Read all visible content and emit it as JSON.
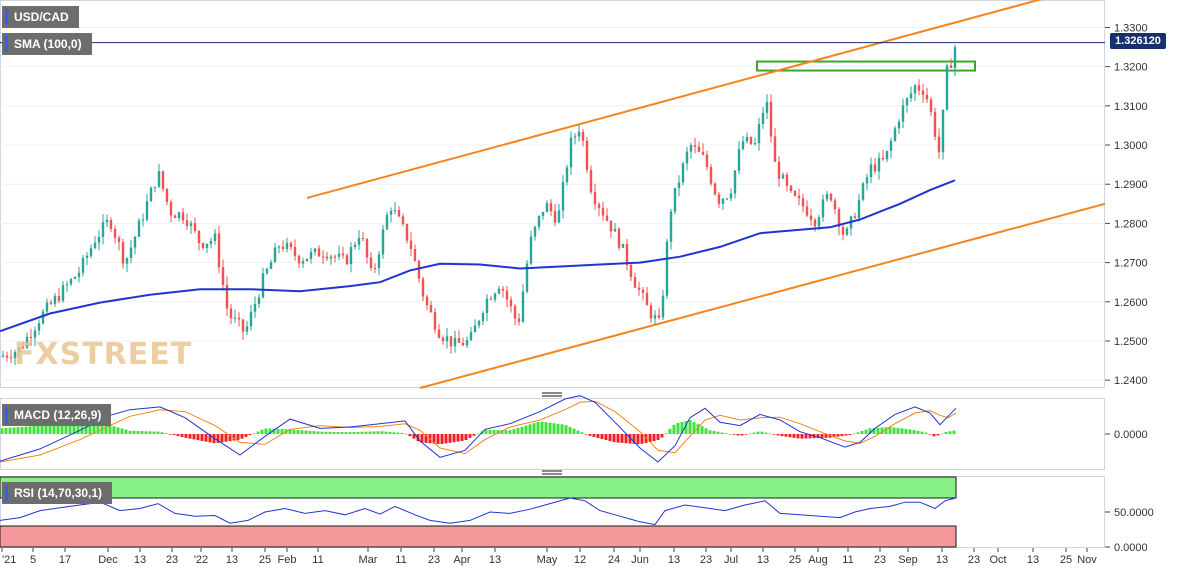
{
  "pair_label": "USD/CAD",
  "sma_label": "SMA (100,0)",
  "macd_label": "MACD (12,26,9)",
  "rsi_label": "RSI (14,70,30,1)",
  "last_price_label": "1.326120",
  "watermark": "FXSTREET",
  "colors": {
    "bull": "#26a69a",
    "bear": "#ef5350",
    "sma": "#1f35d1",
    "trend": "#f5841f",
    "zone": "#38a825",
    "macd_line": "#1f35d1",
    "signal_line": "#f5841f",
    "hist_pos": "#3de23d",
    "hist_neg": "#f02020",
    "rsi_line": "#1f35d1",
    "overbought": "#86f184",
    "oversold": "#f4989b"
  },
  "chart_data": [
    {
      "type": "candlestick",
      "title": "USD/CAD",
      "ylim": [
        1.238,
        1.337
      ],
      "y_ticks": [
        "1.3300",
        "1.3200",
        "1.3100",
        "1.3000",
        "1.2900",
        "1.2800",
        "1.2700",
        "1.2600",
        "1.2500",
        "1.2400"
      ],
      "x_ticks": [
        "'21",
        "5",
        "17",
        "Dec",
        "13",
        "23",
        "'22",
        "13",
        "25",
        "Feb",
        "11",
        "Mar",
        "11",
        "23",
        "Apr",
        "13",
        "May",
        "12",
        "24",
        "Jun",
        "13",
        "23",
        "Jul",
        "13",
        "25",
        "Aug",
        "11",
        "23",
        "Sep",
        "13",
        "23",
        "Oct",
        "13",
        "25",
        "Nov"
      ],
      "last_value": 1.32612,
      "close_path": [
        [
          0,
          1.246
        ],
        [
          20,
          1.248
        ],
        [
          40,
          1.256
        ],
        [
          60,
          1.262
        ],
        [
          80,
          1.268
        ],
        [
          95,
          1.276
        ],
        [
          110,
          1.281
        ],
        [
          125,
          1.27
        ],
        [
          140,
          1.28
        ],
        [
          158,
          1.293
        ],
        [
          170,
          1.283
        ],
        [
          185,
          1.282
        ],
        [
          200,
          1.275
        ],
        [
          215,
          1.276
        ],
        [
          228,
          1.257
        ],
        [
          245,
          1.252
        ],
        [
          262,
          1.265
        ],
        [
          280,
          1.275
        ],
        [
          300,
          1.271
        ],
        [
          325,
          1.273
        ],
        [
          345,
          1.27
        ],
        [
          360,
          1.278
        ],
        [
          372,
          1.266
        ],
        [
          390,
          1.285
        ],
        [
          410,
          1.275
        ],
        [
          425,
          1.26
        ],
        [
          440,
          1.252
        ],
        [
          455,
          1.249
        ],
        [
          470,
          1.25
        ],
        [
          485,
          1.26
        ],
        [
          500,
          1.265
        ],
        [
          518,
          1.254
        ],
        [
          530,
          1.275
        ],
        [
          545,
          1.285
        ],
        [
          558,
          1.281
        ],
        [
          570,
          1.3
        ],
        [
          580,
          1.305
        ],
        [
          592,
          1.288
        ],
        [
          605,
          1.282
        ],
        [
          620,
          1.275
        ],
        [
          635,
          1.265
        ],
        [
          648,
          1.258
        ],
        [
          660,
          1.254
        ],
        [
          670,
          1.283
        ],
        [
          680,
          1.292
        ],
        [
          690,
          1.3
        ],
        [
          705,
          1.296
        ],
        [
          718,
          1.286
        ],
        [
          730,
          1.288
        ],
        [
          742,
          1.301
        ],
        [
          755,
          1.3
        ],
        [
          766,
          1.312
        ],
        [
          775,
          1.295
        ],
        [
          790,
          1.287
        ],
        [
          805,
          1.284
        ],
        [
          815,
          1.281
        ],
        [
          830,
          1.288
        ],
        [
          845,
          1.276
        ],
        [
          858,
          1.285
        ],
        [
          870,
          1.294
        ],
        [
          885,
          1.296
        ],
        [
          900,
          1.308
        ],
        [
          915,
          1.315
        ],
        [
          925,
          1.314
        ],
        [
          932,
          1.307
        ],
        [
          940,
          1.297
        ],
        [
          946,
          1.318
        ],
        [
          952,
          1.322
        ],
        [
          956,
          1.3261
        ]
      ],
      "sma_100": [
        [
          0,
          1.2525
        ],
        [
          50,
          1.257
        ],
        [
          100,
          1.2598
        ],
        [
          150,
          1.2618
        ],
        [
          200,
          1.2632
        ],
        [
          250,
          1.2632
        ],
        [
          300,
          1.2627
        ],
        [
          350,
          1.264
        ],
        [
          380,
          1.265
        ],
        [
          410,
          1.268
        ],
        [
          440,
          1.2697
        ],
        [
          480,
          1.2695
        ],
        [
          520,
          1.2685
        ],
        [
          560,
          1.269
        ],
        [
          600,
          1.2695
        ],
        [
          640,
          1.27
        ],
        [
          680,
          1.2715
        ],
        [
          720,
          1.274
        ],
        [
          760,
          1.2775
        ],
        [
          800,
          1.2784
        ],
        [
          830,
          1.279
        ],
        [
          860,
          1.281
        ],
        [
          900,
          1.285
        ],
        [
          930,
          1.2885
        ],
        [
          955,
          1.291
        ]
      ],
      "trend_lines": [
        {
          "name": "upper channel",
          "from": [
            307,
            1.2865
          ],
          "to": [
            1050,
            1.3378
          ]
        },
        {
          "name": "lower channel",
          "from": [
            420,
            1.238
          ],
          "to": [
            1105,
            1.285
          ]
        }
      ],
      "resistance_zone": {
        "x_range": [
          757,
          975
        ],
        "y_range": [
          1.319,
          1.3213
        ]
      }
    },
    {
      "type": "macd",
      "title": "MACD (12,26,9)",
      "ylim": [
        -0.0075,
        0.0075
      ],
      "y_ticks": [
        "0.0000"
      ],
      "histogram": [
        [
          0,
          0.0012
        ],
        [
          40,
          0.0018
        ],
        [
          80,
          0.002
        ],
        [
          110,
          0.0019
        ],
        [
          130,
          0.0007
        ],
        [
          160,
          0.0005
        ],
        [
          185,
          -0.0008
        ],
        [
          215,
          -0.002
        ],
        [
          240,
          -0.0012
        ],
        [
          265,
          0.0012
        ],
        [
          290,
          0.001
        ],
        [
          320,
          0.0005
        ],
        [
          350,
          0.0004
        ],
        [
          380,
          0.0006
        ],
        [
          405,
          0.0002
        ],
        [
          420,
          -0.0018
        ],
        [
          440,
          -0.0022
        ],
        [
          465,
          -0.0014
        ],
        [
          485,
          0.0009
        ],
        [
          510,
          0.0008
        ],
        [
          540,
          0.0027
        ],
        [
          565,
          0.002
        ],
        [
          590,
          -0.0004
        ],
        [
          615,
          -0.0018
        ],
        [
          640,
          -0.0022
        ],
        [
          660,
          -0.0012
        ],
        [
          675,
          0.0022
        ],
        [
          690,
          0.003
        ],
        [
          710,
          0.0008
        ],
        [
          740,
          -0.0004
        ],
        [
          760,
          0.0006
        ],
        [
          780,
          -0.0004
        ],
        [
          800,
          -0.001
        ],
        [
          830,
          -0.0008
        ],
        [
          850,
          -0.0002
        ],
        [
          870,
          0.0012
        ],
        [
          890,
          0.0015
        ],
        [
          910,
          0.001
        ],
        [
          925,
          0.0004
        ],
        [
          935,
          -0.0006
        ],
        [
          945,
          0.0004
        ],
        [
          956,
          0.0008
        ]
      ],
      "macd_line": [
        [
          0,
          -0.0058
        ],
        [
          40,
          -0.0032
        ],
        [
          80,
          0.0008
        ],
        [
          110,
          0.004
        ],
        [
          130,
          0.0052
        ],
        [
          160,
          0.0058
        ],
        [
          185,
          0.0035
        ],
        [
          215,
          -0.001
        ],
        [
          240,
          -0.0045
        ],
        [
          265,
          -0.0005
        ],
        [
          290,
          0.0032
        ],
        [
          320,
          0.0012
        ],
        [
          350,
          0.0015
        ],
        [
          380,
          0.0022
        ],
        [
          405,
          0.0028
        ],
        [
          420,
          -0.0015
        ],
        [
          440,
          -0.005
        ],
        [
          465,
          -0.0035
        ],
        [
          485,
          0.001
        ],
        [
          510,
          0.0022
        ],
        [
          540,
          0.0048
        ],
        [
          565,
          0.0075
        ],
        [
          580,
          0.0082
        ],
        [
          595,
          0.0068
        ],
        [
          615,
          0.0025
        ],
        [
          640,
          -0.003
        ],
        [
          658,
          -0.006
        ],
        [
          675,
          -0.0025
        ],
        [
          690,
          0.0035
        ],
        [
          705,
          0.0055
        ],
        [
          720,
          0.0025
        ],
        [
          740,
          0.0018
        ],
        [
          760,
          0.0042
        ],
        [
          780,
          0.003
        ],
        [
          800,
          0.0005
        ],
        [
          820,
          -0.0008
        ],
        [
          845,
          -0.0028
        ],
        [
          860,
          -0.0018
        ],
        [
          875,
          0.0012
        ],
        [
          895,
          0.0042
        ],
        [
          915,
          0.0058
        ],
        [
          930,
          0.0045
        ],
        [
          940,
          0.002
        ],
        [
          948,
          0.0038
        ],
        [
          956,
          0.0055
        ]
      ],
      "signal_line": [
        [
          0,
          -0.006
        ],
        [
          40,
          -0.0045
        ],
        [
          80,
          -0.0012
        ],
        [
          110,
          0.0018
        ],
        [
          130,
          0.0038
        ],
        [
          160,
          0.0052
        ],
        [
          185,
          0.0048
        ],
        [
          215,
          0.0018
        ],
        [
          240,
          -0.0018
        ],
        [
          265,
          -0.0022
        ],
        [
          290,
          0.001
        ],
        [
          320,
          0.0018
        ],
        [
          350,
          0.0014
        ],
        [
          380,
          0.0016
        ],
        [
          405,
          0.0022
        ],
        [
          420,
          0.0008
        ],
        [
          440,
          -0.003
        ],
        [
          465,
          -0.0042
        ],
        [
          485,
          -0.0012
        ],
        [
          510,
          0.0015
        ],
        [
          540,
          0.003
        ],
        [
          565,
          0.0052
        ],
        [
          580,
          0.0068
        ],
        [
          595,
          0.007
        ],
        [
          615,
          0.0048
        ],
        [
          640,
          0.0005
        ],
        [
          658,
          -0.0035
        ],
        [
          675,
          -0.004
        ],
        [
          690,
          -0.0005
        ],
        [
          705,
          0.003
        ],
        [
          720,
          0.004
        ],
        [
          740,
          0.003
        ],
        [
          760,
          0.0035
        ],
        [
          780,
          0.0036
        ],
        [
          800,
          0.0022
        ],
        [
          820,
          0.0005
        ],
        [
          845,
          -0.0015
        ],
        [
          860,
          -0.002
        ],
        [
          875,
          -0.0005
        ],
        [
          895,
          0.0022
        ],
        [
          915,
          0.0045
        ],
        [
          930,
          0.005
        ],
        [
          940,
          0.004
        ],
        [
          948,
          0.0035
        ],
        [
          956,
          0.0045
        ]
      ]
    },
    {
      "type": "line",
      "title": "RSI (14,70,30,1)",
      "ylim": [
        0,
        100
      ],
      "y_ticks": [
        "50.0000",
        "0.0000"
      ],
      "overbought": 70,
      "oversold": 30,
      "rsi": [
        [
          0,
          38
        ],
        [
          20,
          42
        ],
        [
          40,
          52
        ],
        [
          60,
          56
        ],
        [
          80,
          60
        ],
        [
          100,
          64
        ],
        [
          120,
          52
        ],
        [
          140,
          55
        ],
        [
          158,
          62
        ],
        [
          175,
          48
        ],
        [
          195,
          44
        ],
        [
          215,
          45
        ],
        [
          230,
          34
        ],
        [
          248,
          38
        ],
        [
          265,
          50
        ],
        [
          285,
          55
        ],
        [
          305,
          48
        ],
        [
          325,
          52
        ],
        [
          345,
          46
        ],
        [
          365,
          55
        ],
        [
          380,
          47
        ],
        [
          395,
          58
        ],
        [
          415,
          46
        ],
        [
          430,
          38
        ],
        [
          450,
          34
        ],
        [
          470,
          38
        ],
        [
          490,
          50
        ],
        [
          510,
          48
        ],
        [
          530,
          54
        ],
        [
          550,
          62
        ],
        [
          570,
          70
        ],
        [
          585,
          66
        ],
        [
          600,
          52
        ],
        [
          620,
          44
        ],
        [
          640,
          36
        ],
        [
          655,
          32
        ],
        [
          665,
          52
        ],
        [
          685,
          60
        ],
        [
          705,
          56
        ],
        [
          725,
          52
        ],
        [
          745,
          60
        ],
        [
          765,
          66
        ],
        [
          780,
          48
        ],
        [
          800,
          46
        ],
        [
          820,
          44
        ],
        [
          840,
          42
        ],
        [
          855,
          50
        ],
        [
          870,
          55
        ],
        [
          890,
          58
        ],
        [
          905,
          64
        ],
        [
          920,
          64
        ],
        [
          935,
          55
        ],
        [
          945,
          66
        ],
        [
          956,
          70
        ]
      ]
    }
  ]
}
